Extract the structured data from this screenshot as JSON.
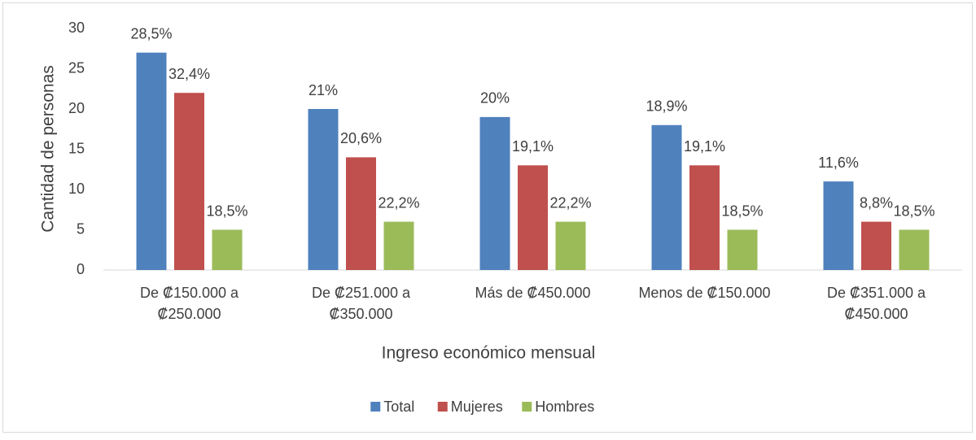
{
  "chart_data": {
    "type": "bar",
    "x_label": "Ingreso económico mensual",
    "y_label": "Cantidad de personas",
    "categories": [
      [
        "De ₡150.000 a",
        "₡250.000"
      ],
      [
        "De ₡251.000 a",
        "₡350.000"
      ],
      [
        "Más de ₡450.000"
      ],
      [
        "Menos de ₡150.000"
      ],
      [
        "De ₡351.000 a",
        "₡450.000"
      ]
    ],
    "series": [
      {
        "name": "Total",
        "color": "#4f81bd",
        "values": [
          27,
          20,
          19,
          18,
          11
        ],
        "labels": [
          "28,5%",
          "21%",
          "20%",
          "18,9%",
          "11,6%"
        ]
      },
      {
        "name": "Mujeres",
        "color": "#c0504d",
        "values": [
          22,
          14,
          13,
          13,
          6
        ],
        "labels": [
          "32,4%",
          "20,6%",
          "19,1%",
          "19,1%",
          "8,8%"
        ]
      },
      {
        "name": "Hombres",
        "color": "#9bbb59",
        "values": [
          5,
          6,
          6,
          5,
          5
        ],
        "labels": [
          "18,5%",
          "22,2%",
          "22,2%",
          "18,5%",
          "18,5%"
        ]
      }
    ],
    "ylim": [
      0,
      30
    ],
    "yticks": [
      0,
      5,
      10,
      15,
      20,
      25,
      30
    ],
    "grid": false,
    "legend": "bottom"
  }
}
